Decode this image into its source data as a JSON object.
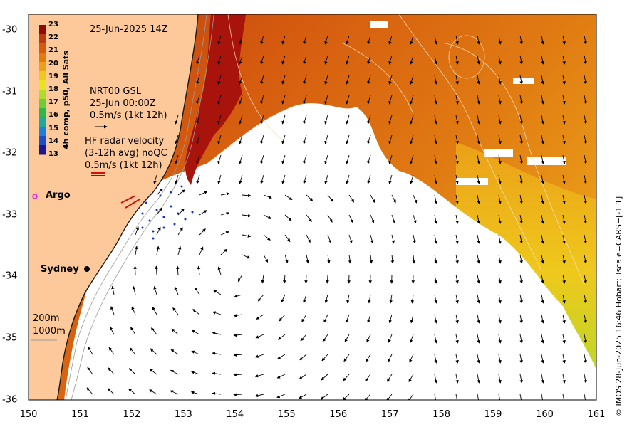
{
  "map": {
    "title": "25-Jun-2025 14Z",
    "colorbar": {
      "label": "4h comp, p50, All Sats",
      "ticks": [
        "23",
        "22",
        "21",
        "20",
        "19",
        "18",
        "17",
        "16",
        "15",
        "14",
        "13"
      ],
      "colors": [
        "#8b0a0a",
        "#b83a10",
        "#d55a0f",
        "#e07a12",
        "#eba018",
        "#efc81c",
        "#e9e41c",
        "#b0dc2a",
        "#6fcc35",
        "#2cb84a",
        "#1fa8a0",
        "#1a80d8",
        "#1c4ec8",
        "#1a1890"
      ]
    },
    "nrt_label_1": "NRT00 GSL",
    "nrt_label_2": "25-Jun 00:00Z",
    "nrt_label_3": "0.5m/s (1kt 12h)",
    "hf_label_1": "HF radar velocity",
    "hf_label_2": "(3-12h avg) noQC",
    "hf_label_3": "0.5m/s (1kt 12h)",
    "argo_label": "Argo",
    "sydney_label": "Sydney",
    "depth_200": "200m",
    "depth_1000": "1000m",
    "credit": "© IMOS 28-Jun-2025 16:46 Hobart; Tscale=CARS+[-1 1]",
    "x_ticks": [
      "150",
      "151",
      "152",
      "153",
      "154",
      "155",
      "156",
      "157",
      "158",
      "159",
      "160",
      "161"
    ],
    "y_ticks": [
      "-30",
      "-31",
      "-32",
      "-33",
      "-34",
      "-35",
      "-36"
    ],
    "colors": {
      "land": "#fdc99a",
      "cloud": "#ffffff",
      "warm_core": "#a8140c",
      "argo": "#e020e0"
    }
  }
}
